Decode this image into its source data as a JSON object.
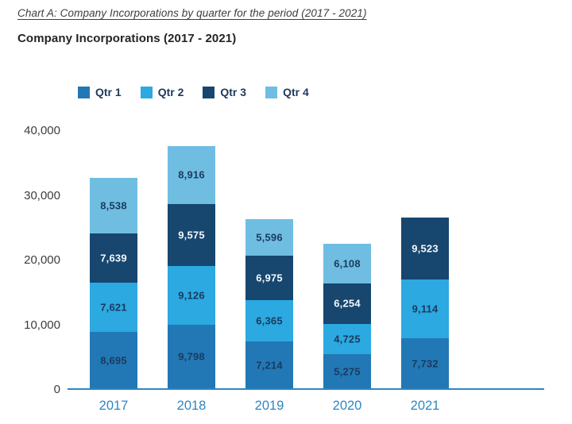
{
  "page": {
    "caption": "Chart A: Company Incorporations by quarter for the period (2017 - 2021)",
    "title": "Company Incorporations (2017 - 2021)"
  },
  "colors": {
    "qtr1": "#2278b5",
    "qtr2": "#2ba9e0",
    "qtr3": "#17466f",
    "qtr4": "#6fbee2",
    "axis_line": "#2e86c1",
    "x_tick_text": "#2e86c1",
    "y_tick_text": "#3d3d3d",
    "legend_text": "#1e3a5c",
    "label_on_light": "#1b3a5e",
    "label_on_dark": "#f4f8fb"
  },
  "chart_data": {
    "type": "bar",
    "stacked": true,
    "title": "Company Incorporations (2017 - 2021)",
    "xlabel": "",
    "ylabel": "",
    "categories": [
      "2017",
      "2018",
      "2019",
      "2020",
      "2021"
    ],
    "series": [
      {
        "name": "Qtr 1",
        "color": "#2278b5",
        "label_color": "#1b3a5e",
        "values": [
          8695,
          9798,
          7214,
          5275,
          7732
        ]
      },
      {
        "name": "Qtr 2",
        "color": "#2ba9e0",
        "label_color": "#1b3a5e",
        "values": [
          7621,
          9126,
          6365,
          4725,
          9114
        ]
      },
      {
        "name": "Qtr 3",
        "color": "#17466f",
        "label_color": "#f4f8fb",
        "values": [
          7639,
          9575,
          6975,
          6254,
          9523
        ]
      },
      {
        "name": "Qtr 4",
        "color": "#6fbee2",
        "label_color": "#1b3a5e",
        "values": [
          8538,
          8916,
          5596,
          6108,
          null
        ]
      }
    ],
    "data_labels": [
      "8,695",
      "7,621",
      "7,639",
      "8,538",
      "9,798",
      "9,126",
      "9,575",
      "8,916",
      "7,214",
      "6,365",
      "6,975",
      "5,596",
      "5,275",
      "4,725",
      "6,254",
      "6,108",
      "7,732",
      "9,114",
      "9,523"
    ],
    "ylim": [
      0,
      40000
    ],
    "yticks": [
      0,
      10000,
      20000,
      30000,
      40000
    ],
    "ytick_labels": [
      "0",
      "10,000",
      "20,000",
      "30,000",
      "40,000"
    ],
    "grid": false,
    "legend_position": "top-left"
  }
}
